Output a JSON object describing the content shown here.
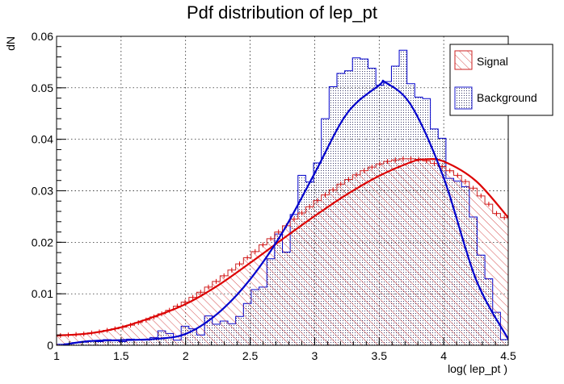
{
  "chart_data": {
    "type": "histogram",
    "title": "Pdf distribution of lep_pt",
    "xlabel": "log( lep_pt )",
    "ylabel": "dN",
    "xlim": [
      1,
      4.5
    ],
    "ylim": [
      0,
      0.06
    ],
    "x_ticks": [
      1,
      1.5,
      2,
      2.5,
      3,
      3.5,
      4,
      4.5
    ],
    "x_tick_labels": [
      "1",
      "1.5",
      "2",
      "2.5",
      "3",
      "3.5",
      "4",
      "4.5"
    ],
    "y_ticks": [
      0,
      0.01,
      0.02,
      0.03,
      0.04,
      0.05,
      0.06
    ],
    "y_tick_labels": [
      "0",
      "0.01",
      "0.02",
      "0.03",
      "0.04",
      "0.05",
      "0.06"
    ],
    "grid": true,
    "legend_position": "top-right",
    "legend": [
      {
        "name": "Signal",
        "color": "#cc2222",
        "fill": "diagonal-hatch"
      },
      {
        "name": "Background",
        "color": "#1a1acc",
        "fill": "dotted"
      }
    ],
    "series": [
      {
        "name": "Signal",
        "color": "#dd0000",
        "hist_x_range": [
          1,
          4.5
        ],
        "hist_values": [
          0.0019,
          0.002,
          0.0021,
          0.0022,
          0.0024,
          0.0026,
          0.0029,
          0.0032,
          0.0035,
          0.0039,
          0.0044,
          0.0049,
          0.0055,
          0.0061,
          0.0068,
          0.0076,
          0.0084,
          0.0093,
          0.0103,
          0.0113,
          0.0124,
          0.0135,
          0.0146,
          0.0158,
          0.017,
          0.0182,
          0.0195,
          0.0207,
          0.022,
          0.0232,
          0.0245,
          0.0257,
          0.0269,
          0.0281,
          0.0292,
          0.0302,
          0.0313,
          0.0322,
          0.0331,
          0.0339,
          0.0346,
          0.0352,
          0.0357,
          0.036,
          0.0362,
          0.0362,
          0.0361,
          0.0358,
          0.0353,
          0.0347,
          0.0339,
          0.033,
          0.0318,
          0.0305,
          0.029,
          0.0274,
          0.0256,
          0.0248
        ],
        "curve_x": [
          1.0,
          1.25,
          1.5,
          1.75,
          2.0,
          2.25,
          2.5,
          2.75,
          3.0,
          3.25,
          3.5,
          3.75,
          3.85,
          4.0,
          4.25,
          4.5
        ],
        "curve_y": [
          0.0019,
          0.0023,
          0.0035,
          0.0055,
          0.008,
          0.0116,
          0.016,
          0.0206,
          0.0251,
          0.0293,
          0.0329,
          0.0356,
          0.0361,
          0.0357,
          0.0319,
          0.0248
        ]
      },
      {
        "name": "Background",
        "color": "#0000cc",
        "hist_x_range": [
          1,
          4.5
        ],
        "hist_values": [
          0.0002,
          0.0003,
          0.0005,
          0.0006,
          0.0008,
          0.0007,
          0.0011,
          0.001,
          0.0007,
          0.0012,
          0.0011,
          0.001,
          0.0015,
          0.0028,
          0.0023,
          0.001,
          0.0037,
          0.0032,
          0.002,
          0.0057,
          0.0041,
          0.0047,
          0.0042,
          0.0056,
          0.0081,
          0.0108,
          0.0113,
          0.0168,
          0.0216,
          0.0181,
          0.0254,
          0.033,
          0.0317,
          0.0354,
          0.044,
          0.0502,
          0.0528,
          0.0533,
          0.0558,
          0.0556,
          0.0538,
          0.0505,
          0.0512,
          0.0542,
          0.0573,
          0.0508,
          0.0482,
          0.0479,
          0.042,
          0.0402,
          0.0324,
          0.0319,
          0.0308,
          0.0249,
          0.0175,
          0.0129,
          0.0064,
          0.0011
        ],
        "curve_x": [
          1.05,
          1.25,
          1.5,
          1.75,
          2.0,
          2.25,
          2.5,
          2.75,
          3.0,
          3.25,
          3.5,
          3.55,
          3.75,
          4.0,
          4.25,
          4.5
        ],
        "curve_y": [
          0.0001,
          0.0008,
          0.001,
          0.0012,
          0.0022,
          0.0062,
          0.0128,
          0.0219,
          0.0334,
          0.045,
          0.0505,
          0.051,
          0.0465,
          0.0325,
          0.0128,
          0.0012
        ]
      }
    ]
  }
}
